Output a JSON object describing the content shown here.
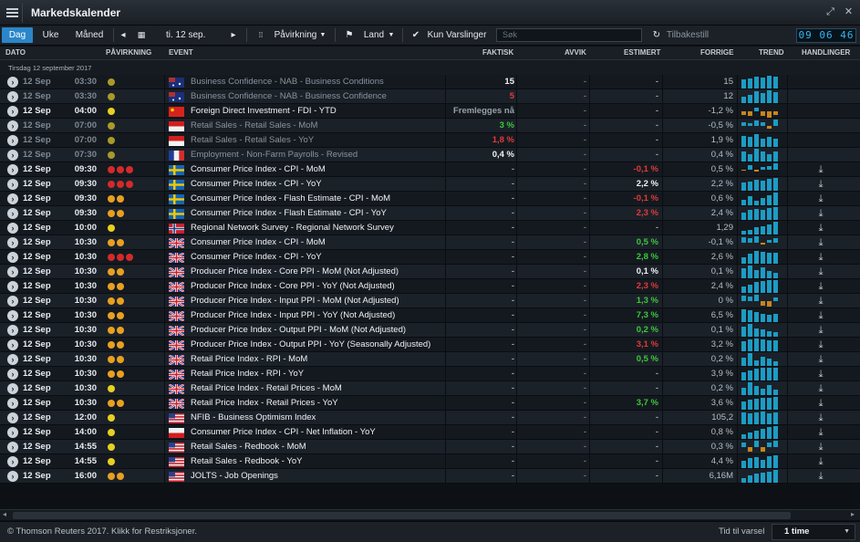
{
  "app": {
    "title": "Markedskalender"
  },
  "toolbar": {
    "view_tabs": [
      "Dag",
      "Uke",
      "Måned"
    ],
    "date_label": "ti. 12 sep.",
    "impact_label": "Påvirkning",
    "country_label": "Land",
    "alerts_label": "Kun Varslinger",
    "search_placeholder": "Søk",
    "reset_label": "Tilbakestill",
    "clock": "09 06 46"
  },
  "columns": [
    "DATO",
    "PÅVIRKNING",
    "EVENT",
    "FAKTISK",
    "AVVIK",
    "ESTIMERT",
    "FORRIGE",
    "TREND",
    "HANDLINGER"
  ],
  "date_group": "Tirsdag 12 september 2017",
  "colors": {
    "accent": "#2a86c9",
    "positive": "#3cc83c",
    "negative": "#e03a3a",
    "trend": "#1c9cc4",
    "impact_high": "#d42a2a",
    "impact_med": "#e8a020",
    "impact_low": "#e8d020"
  },
  "rows": [
    {
      "date": "12 Sep",
      "time": "03:30",
      "impact": "low-dim",
      "flag": "au",
      "event": "Business Confidence - NAB - Business Conditions",
      "actual": "15",
      "actual_color": "#f0f2f5",
      "deviation": "-",
      "estimate": "-",
      "estimate_color": "#98a0aa",
      "previous": "15",
      "past": true,
      "trend": [
        9,
        10,
        12,
        11,
        13,
        12
      ]
    },
    {
      "date": "12 Sep",
      "time": "03:30",
      "impact": "low-dim",
      "flag": "au",
      "event": "Business Confidence - NAB - Business Confidence",
      "actual": "5",
      "actual_color": "#e03a3a",
      "deviation": "-",
      "estimate": "-",
      "estimate_color": "#98a0aa",
      "previous": "12",
      "past": true,
      "trend": [
        6,
        8,
        11,
        9,
        12,
        10
      ]
    },
    {
      "date": "12 Sep",
      "time": "04:00",
      "impact": "low",
      "flag": "cn",
      "event": "Foreign Direct Investment - FDI - YTD",
      "actual": "Fremlegges nå",
      "actual_color": "#98a0aa",
      "deviation": "-",
      "estimate": "-",
      "estimate_color": "#98a0aa",
      "previous": "-1,2 %",
      "past": false,
      "trend": [
        -2,
        -3,
        2,
        -3,
        -4,
        -2
      ]
    },
    {
      "date": "12 Sep",
      "time": "07:00",
      "impact": "low-dim",
      "flag": "id",
      "event": "Retail Sales - Retail Sales - MoM",
      "actual": "3 %",
      "actual_color": "#3cc83c",
      "deviation": "-",
      "estimate": "-",
      "estimate_color": "#98a0aa",
      "previous": "-0,5 %",
      "past": true,
      "trend": [
        3,
        2,
        4,
        3,
        -2,
        5
      ]
    },
    {
      "date": "12 Sep",
      "time": "07:00",
      "impact": "low-dim",
      "flag": "id",
      "event": "Retail Sales - Retail Sales - YoY",
      "actual": "1,8 %",
      "actual_color": "#e03a3a",
      "deviation": "-",
      "estimate": "-",
      "estimate_color": "#98a0aa",
      "previous": "1,9 %",
      "past": true,
      "trend": [
        7,
        6,
        8,
        5,
        6,
        5
      ]
    },
    {
      "date": "12 Sep",
      "time": "07:30",
      "impact": "low-dim",
      "flag": "fr",
      "event": "Employment - Non-Farm Payrolls - Revised",
      "actual": "0,4 %",
      "actual_color": "#f0f2f5",
      "deviation": "-",
      "estimate": "-",
      "estimate_color": "#98a0aa",
      "previous": "0,4 %",
      "past": true,
      "trend": [
        4,
        3,
        5,
        4,
        3,
        4
      ]
    },
    {
      "date": "12 Sep",
      "time": "09:30",
      "impact": "high",
      "flag": "se",
      "event": "Consumer Price Index - CPI - MoM",
      "actual": "-",
      "actual_color": "#98a0aa",
      "deviation": "-",
      "estimate": "-0,1 %",
      "estimate_color": "#e03a3a",
      "previous": "0,5 %",
      "past": false,
      "trend": [
        -2,
        8,
        -3,
        4,
        6,
        11
      ]
    },
    {
      "date": "12 Sep",
      "time": "09:30",
      "impact": "high",
      "flag": "se",
      "event": "Consumer Price Index - CPI - YoY",
      "actual": "-",
      "actual_color": "#98a0aa",
      "deviation": "-",
      "estimate": "2,2 %",
      "estimate_color": "#f0f2f5",
      "previous": "2,2 %",
      "past": false,
      "trend": [
        8,
        9,
        11,
        10,
        12,
        13
      ]
    },
    {
      "date": "12 Sep",
      "time": "09:30",
      "impact": "med",
      "flag": "se",
      "event": "Consumer Price Index - Flash Estimate - CPI - MoM",
      "actual": "-",
      "actual_color": "#98a0aa",
      "deviation": "-",
      "estimate": "-0,1 %",
      "estimate_color": "#e03a3a",
      "previous": "0,6 %",
      "past": false,
      "trend": [
        5,
        8,
        4,
        6,
        9,
        11
      ]
    },
    {
      "date": "12 Sep",
      "time": "09:30",
      "impact": "med",
      "flag": "se",
      "event": "Consumer Price Index - Flash Estimate - CPI - YoY",
      "actual": "-",
      "actual_color": "#98a0aa",
      "deviation": "-",
      "estimate": "2,3 %",
      "estimate_color": "#e03a3a",
      "previous": "2,4 %",
      "past": false,
      "trend": [
        7,
        9,
        10,
        9,
        11,
        12
      ]
    },
    {
      "date": "12 Sep",
      "time": "10:00",
      "impact": "low",
      "flag": "no",
      "event": "Regional Network Survey - Regional Network Survey",
      "actual": "-",
      "actual_color": "#98a0aa",
      "deviation": "-",
      "estimate": "-",
      "estimate_color": "#98a0aa",
      "previous": "1,29",
      "past": false,
      "trend": [
        3,
        4,
        6,
        7,
        9,
        11
      ]
    },
    {
      "date": "12 Sep",
      "time": "10:30",
      "impact": "med",
      "flag": "gb",
      "event": "Consumer Price Index - CPI - MoM",
      "actual": "-",
      "actual_color": "#98a0aa",
      "deviation": "-",
      "estimate": "0,5 %",
      "estimate_color": "#3cc83c",
      "previous": "-0,1 %",
      "past": false,
      "trend": [
        8,
        6,
        9,
        -3,
        4,
        7
      ]
    },
    {
      "date": "12 Sep",
      "time": "10:30",
      "impact": "high",
      "flag": "gb",
      "event": "Consumer Price Index - CPI - YoY",
      "actual": "-",
      "actual_color": "#98a0aa",
      "deviation": "-",
      "estimate": "2,8 %",
      "estimate_color": "#3cc83c",
      "previous": "2,6 %",
      "past": false,
      "trend": [
        6,
        9,
        12,
        11,
        10,
        10
      ]
    },
    {
      "date": "12 Sep",
      "time": "10:30",
      "impact": "med",
      "flag": "gb",
      "event": "Producer Price Index - Core PPI - MoM (Not Adjusted)",
      "actual": "-",
      "actual_color": "#98a0aa",
      "deviation": "-",
      "estimate": "0,1 %",
      "estimate_color": "#f0f2f5",
      "previous": "0,1 %",
      "past": false,
      "trend": [
        7,
        9,
        6,
        8,
        5,
        4
      ]
    },
    {
      "date": "12 Sep",
      "time": "10:30",
      "impact": "med",
      "flag": "gb",
      "event": "Producer Price Index - Core PPI - YoY (Not Adjusted)",
      "actual": "-",
      "actual_color": "#98a0aa",
      "deviation": "-",
      "estimate": "2,3 %",
      "estimate_color": "#e03a3a",
      "previous": "2,4 %",
      "past": false,
      "trend": [
        6,
        8,
        10,
        11,
        12,
        12
      ]
    },
    {
      "date": "12 Sep",
      "time": "10:30",
      "impact": "med",
      "flag": "gb",
      "event": "Producer Price Index - Input PPI - MoM (Not Adjusted)",
      "actual": "-",
      "actual_color": "#98a0aa",
      "deviation": "-",
      "estimate": "1,3 %",
      "estimate_color": "#3cc83c",
      "previous": "0 %",
      "past": false,
      "trend": [
        5,
        4,
        6,
        -4,
        -5,
        3
      ]
    },
    {
      "date": "12 Sep",
      "time": "10:30",
      "impact": "med",
      "flag": "gb",
      "event": "Producer Price Index - Input PPI - YoY (Not Adjusted)",
      "actual": "-",
      "actual_color": "#98a0aa",
      "deviation": "-",
      "estimate": "7,3 %",
      "estimate_color": "#3cc83c",
      "previous": "6,5 %",
      "past": false,
      "trend": [
        13,
        12,
        10,
        8,
        7,
        8
      ]
    },
    {
      "date": "12 Sep",
      "time": "10:30",
      "impact": "med",
      "flag": "gb",
      "event": "Producer Price Index - Output PPI - MoM (Not Adjusted)",
      "actual": "-",
      "actual_color": "#98a0aa",
      "deviation": "-",
      "estimate": "0,2 %",
      "estimate_color": "#3cc83c",
      "previous": "0,1 %",
      "past": false,
      "trend": [
        9,
        11,
        7,
        6,
        5,
        4
      ]
    },
    {
      "date": "12 Sep",
      "time": "10:30",
      "impact": "med",
      "flag": "gb",
      "event": "Producer Price Index - Output PPI - YoY (Seasonally Adjusted)",
      "actual": "-",
      "actual_color": "#98a0aa",
      "deviation": "-",
      "estimate": "3,1 %",
      "estimate_color": "#e03a3a",
      "previous": "3,2 %",
      "past": false,
      "trend": [
        10,
        12,
        13,
        12,
        11,
        11
      ]
    },
    {
      "date": "12 Sep",
      "time": "10:30",
      "impact": "med",
      "flag": "gb",
      "event": "Retail Price Index - RPI - MoM",
      "actual": "-",
      "actual_color": "#98a0aa",
      "deviation": "-",
      "estimate": "0,5 %",
      "estimate_color": "#3cc83c",
      "previous": "0,2 %",
      "past": false,
      "trend": [
        7,
        11,
        5,
        8,
        6,
        4
      ]
    },
    {
      "date": "12 Sep",
      "time": "10:30",
      "impact": "med",
      "flag": "gb",
      "event": "Retail Price Index - RPI - YoY",
      "actual": "-",
      "actual_color": "#98a0aa",
      "deviation": "-",
      "estimate": "-",
      "estimate_color": "#98a0aa",
      "previous": "3,9 %",
      "past": false,
      "trend": [
        8,
        9,
        11,
        12,
        12,
        12
      ]
    },
    {
      "date": "12 Sep",
      "time": "10:30",
      "impact": "low",
      "flag": "gb",
      "event": "Retail Price Index - Retail Prices - MoM",
      "actual": "-",
      "actual_color": "#98a0aa",
      "deviation": "-",
      "estimate": "-",
      "estimate_color": "#98a0aa",
      "previous": "0,2 %",
      "past": false,
      "trend": [
        6,
        10,
        7,
        5,
        8,
        4
      ]
    },
    {
      "date": "12 Sep",
      "time": "10:30",
      "impact": "med",
      "flag": "gb",
      "event": "Retail Price Index - Retail Prices - YoY",
      "actual": "-",
      "actual_color": "#98a0aa",
      "deviation": "-",
      "estimate": "3,7 %",
      "estimate_color": "#3cc83c",
      "previous": "3,6 %",
      "past": false,
      "trend": [
        8,
        10,
        11,
        12,
        12,
        13
      ]
    },
    {
      "date": "12 Sep",
      "time": "12:00",
      "impact": "low",
      "flag": "us",
      "event": "NFIB - Business Optimism Index",
      "actual": "-",
      "actual_color": "#98a0aa",
      "deviation": "-",
      "estimate": "-",
      "estimate_color": "#98a0aa",
      "previous": "105,2",
      "past": false,
      "trend": [
        12,
        11,
        12,
        13,
        11,
        12
      ]
    },
    {
      "date": "12 Sep",
      "time": "14:00",
      "impact": "low",
      "flag": "pl",
      "event": "Consumer Price Index - CPI - Net Inflation - YoY",
      "actual": "-",
      "actual_color": "#98a0aa",
      "deviation": "-",
      "estimate": "-",
      "estimate_color": "#98a0aa",
      "previous": "0,8 %",
      "past": false,
      "trend": [
        4,
        6,
        8,
        9,
        11,
        12
      ]
    },
    {
      "date": "12 Sep",
      "time": "14:55",
      "impact": "low",
      "flag": "us",
      "event": "Retail Sales - Redbook - MoM",
      "actual": "-",
      "actual_color": "#98a0aa",
      "deviation": "-",
      "estimate": "-",
      "estimate_color": "#98a0aa",
      "previous": "0,3 %",
      "past": false,
      "trend": [
        2,
        -2,
        3,
        -2,
        2,
        3
      ]
    },
    {
      "date": "12 Sep",
      "time": "14:55",
      "impact": "low",
      "flag": "us",
      "event": "Retail Sales - Redbook - YoY",
      "actual": "-",
      "actual_color": "#98a0aa",
      "deviation": "-",
      "estimate": "-",
      "estimate_color": "#98a0aa",
      "previous": "4,4 %",
      "past": false,
      "trend": [
        7,
        9,
        10,
        8,
        11,
        12
      ]
    },
    {
      "date": "12 Sep",
      "time": "16:00",
      "impact": "med",
      "flag": "us",
      "event": "JOLTS - Job Openings",
      "actual": "-",
      "actual_color": "#98a0aa",
      "deviation": "-",
      "estimate": "-",
      "estimate_color": "#98a0aa",
      "previous": "6,16M",
      "past": false,
      "trend": [
        5,
        7,
        9,
        10,
        11,
        13
      ]
    }
  ],
  "footer": {
    "copyright": "© Thomson Reuters 2017. Klikk for Restriksjoner.",
    "alert_label": "Tid til varsel",
    "alert_value": "1 time"
  }
}
